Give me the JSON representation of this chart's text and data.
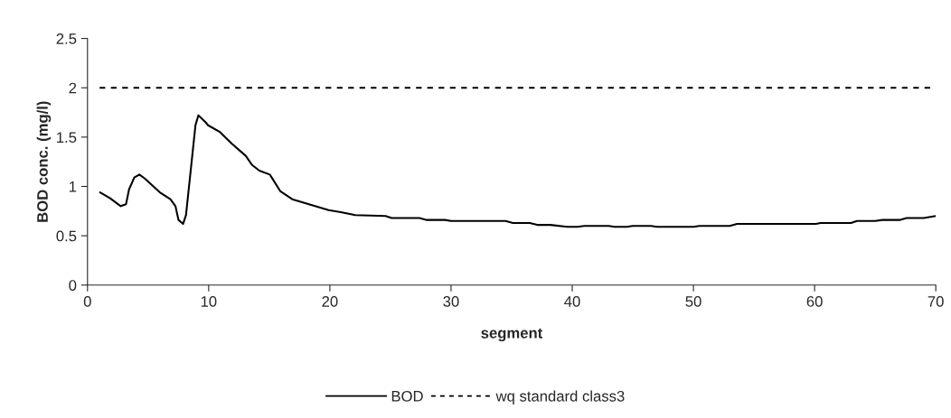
{
  "chart_data": {
    "type": "line",
    "xlabel": "segment",
    "ylabel": "BOD conc. (mg/l)",
    "xlim": [
      0,
      70
    ],
    "xticks": [
      0,
      10,
      20,
      30,
      40,
      50,
      60,
      70
    ],
    "ylim": [
      0,
      2.5
    ],
    "yticks": [
      0,
      0.5,
      1,
      1.5,
      2,
      2.5
    ],
    "grid": false,
    "legend": "bottom",
    "marker": "none",
    "series": [
      {
        "name": "BOD",
        "color": "#000000",
        "line_style": "solid",
        "x": [
          1.04,
          1.87,
          2.74,
          3.18,
          3.43,
          3.86,
          4.28,
          4.73,
          5.97,
          6.84,
          7.26,
          7.51,
          7.89,
          8.13,
          8.91,
          9.15,
          9.75,
          9.95,
          10.95,
          11.94,
          13.06,
          13.56,
          14.18,
          15.05,
          15.92,
          16.9,
          18.53,
          19.9,
          20.9,
          22.1,
          24.6,
          25.1,
          27.4,
          28,
          29.5,
          30,
          34.5,
          35.1,
          36.5,
          37.1,
          38.2,
          39.6,
          40.4,
          41,
          43,
          43.5,
          44.5,
          45,
          46.5,
          47,
          50,
          50.5,
          53,
          53.6,
          60.1,
          60.5,
          63,
          63.5,
          65,
          65.6,
          67,
          67.6,
          69,
          70
        ],
        "values": [
          0.94,
          0.88,
          0.8,
          0.82,
          0.97,
          1.09,
          1.12,
          1.08,
          0.94,
          0.87,
          0.8,
          0.66,
          0.62,
          0.71,
          1.62,
          1.72,
          1.65,
          1.62,
          1.55,
          1.43,
          1.31,
          1.22,
          1.16,
          1.12,
          0.95,
          0.87,
          0.81,
          0.76,
          0.74,
          0.71,
          0.7,
          0.68,
          0.68,
          0.66,
          0.66,
          0.65,
          0.65,
          0.63,
          0.63,
          0.61,
          0.61,
          0.59,
          0.59,
          0.6,
          0.6,
          0.59,
          0.59,
          0.6,
          0.6,
          0.59,
          0.59,
          0.6,
          0.6,
          0.62,
          0.62,
          0.63,
          0.63,
          0.65,
          0.65,
          0.66,
          0.66,
          0.68,
          0.68,
          0.7
        ]
      },
      {
        "name": "wq standard class3",
        "color": "#000000",
        "line_style": "dashed",
        "x": [
          1,
          70
        ],
        "values": [
          2,
          2
        ]
      }
    ]
  }
}
